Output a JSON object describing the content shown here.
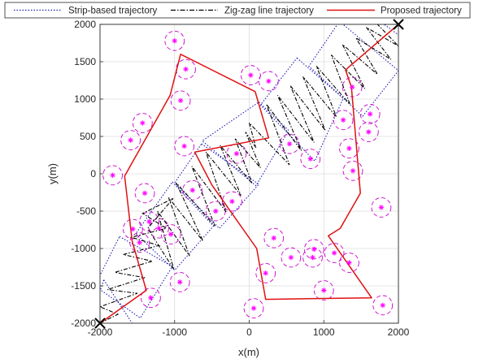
{
  "chart_data": {
    "type": "scatter",
    "xlabel": "x(m)",
    "ylabel": "y(m)",
    "xlim": [
      -2000,
      2000
    ],
    "ylim": [
      -2000,
      2000
    ],
    "xticks": [
      -2000,
      -1000,
      0,
      1000,
      2000
    ],
    "yticks": [
      -2000,
      -1500,
      -1000,
      -500,
      0,
      500,
      1000,
      1500,
      2000
    ],
    "xtick_labels": [
      "-2000",
      "-1000",
      "0",
      "1000",
      "2000"
    ],
    "ytick_labels": [
      "-2000",
      "-1500",
      "-1000",
      "-500",
      "0",
      "500",
      "1000",
      "1500",
      "2000"
    ],
    "grid": true,
    "legend_position": "top",
    "legend": [
      {
        "label": "Strip-based trajectory",
        "color": "#1f1fb4",
        "style": "dotted"
      },
      {
        "label": "Zig-zag line trajectory",
        "color": "#000000",
        "style": "dashdot"
      },
      {
        "label": "Proposed trajectory",
        "color": "#e01010",
        "style": "solid"
      }
    ],
    "colors": {
      "strip": "#1f1fb4",
      "zigzag": "#000000",
      "proposed": "#e01010",
      "ue": "#ff00ff",
      "coverage": "#cc00cc",
      "endpoint": "#000000"
    },
    "endpoints": [
      {
        "x": -2000,
        "y": -2000
      },
      {
        "x": 2000,
        "y": 2000
      }
    ],
    "coverage_radius": 130,
    "ue_points": [
      {
        "x": -1000,
        "y": 1780
      },
      {
        "x": -850,
        "y": 1400
      },
      {
        "x": -920,
        "y": 980
      },
      {
        "x": 20,
        "y": 1320
      },
      {
        "x": 260,
        "y": 1240
      },
      {
        "x": -1430,
        "y": 680
      },
      {
        "x": -1590,
        "y": 450
      },
      {
        "x": -870,
        "y": 370
      },
      {
        "x": -1830,
        "y": -20
      },
      {
        "x": -170,
        "y": 270
      },
      {
        "x": 540,
        "y": 400
      },
      {
        "x": 820,
        "y": 200
      },
      {
        "x": 1380,
        "y": 1160
      },
      {
        "x": 1260,
        "y": 720
      },
      {
        "x": 1620,
        "y": 800
      },
      {
        "x": 1600,
        "y": 560
      },
      {
        "x": 1340,
        "y": 340
      },
      {
        "x": 1390,
        "y": 40
      },
      {
        "x": -1560,
        "y": -740
      },
      {
        "x": -1470,
        "y": -920
      },
      {
        "x": -1340,
        "y": -640
      },
      {
        "x": -1210,
        "y": -730
      },
      {
        "x": -1050,
        "y": -810
      },
      {
        "x": -1400,
        "y": -260
      },
      {
        "x": -760,
        "y": -220
      },
      {
        "x": -450,
        "y": -500
      },
      {
        "x": -230,
        "y": -370
      },
      {
        "x": 1770,
        "y": -450
      },
      {
        "x": 330,
        "y": -860
      },
      {
        "x": 220,
        "y": -1330
      },
      {
        "x": 560,
        "y": -1120
      },
      {
        "x": 870,
        "y": -1010
      },
      {
        "x": 850,
        "y": -1120
      },
      {
        "x": 1140,
        "y": -1060
      },
      {
        "x": 1340,
        "y": -1190
      },
      {
        "x": 1000,
        "y": -1560
      },
      {
        "x": -930,
        "y": -1450
      },
      {
        "x": -1320,
        "y": -1660
      },
      {
        "x": 60,
        "y": -1800
      },
      {
        "x": 1790,
        "y": -1760
      }
    ],
    "proposed_trajectory": [
      {
        "x": -2000,
        "y": -2000
      },
      {
        "x": -1380,
        "y": -1560
      },
      {
        "x": -1570,
        "y": -900
      },
      {
        "x": -1670,
        "y": -30
      },
      {
        "x": -1060,
        "y": 1050
      },
      {
        "x": -920,
        "y": 1600
      },
      {
        "x": 80,
        "y": 1100
      },
      {
        "x": 260,
        "y": 480
      },
      {
        "x": -730,
        "y": 290
      },
      {
        "x": -500,
        "y": -150
      },
      {
        "x": 100,
        "y": -1000
      },
      {
        "x": 220,
        "y": -1680
      },
      {
        "x": 1640,
        "y": -1660
      },
      {
        "x": 1060,
        "y": -830
      },
      {
        "x": 1220,
        "y": -730
      },
      {
        "x": 1490,
        "y": -260
      },
      {
        "x": 1370,
        "y": 1160
      },
      {
        "x": 1290,
        "y": 1390
      },
      {
        "x": 2000,
        "y": 2000
      }
    ],
    "strip_rectangles": [
      [
        {
          "x": -1950,
          "y": -1420
        },
        {
          "x": -1510,
          "y": -2090
        },
        {
          "x": -2040,
          "y": -2100
        },
        {
          "x": -2080,
          "y": -1820
        }
      ],
      [
        {
          "x": -1740,
          "y": -840
        },
        {
          "x": -1030,
          "y": -1240
        },
        {
          "x": -1460,
          "y": -1930
        },
        {
          "x": -2070,
          "y": -1500
        }
      ],
      [
        {
          "x": -1030,
          "y": -110
        },
        {
          "x": -480,
          "y": -700
        },
        {
          "x": -1000,
          "y": -1290
        },
        {
          "x": -1520,
          "y": -800
        }
      ],
      [
        {
          "x": -640,
          "y": 400
        },
        {
          "x": 130,
          "y": -140
        },
        {
          "x": -400,
          "y": -730
        },
        {
          "x": -1000,
          "y": -120
        }
      ],
      [
        {
          "x": 130,
          "y": 960
        },
        {
          "x": 530,
          "y": 580
        },
        {
          "x": 90,
          "y": -160
        },
        {
          "x": -630,
          "y": 440
        }
      ],
      [
        {
          "x": 640,
          "y": 1550
        },
        {
          "x": 1260,
          "y": 1010
        },
        {
          "x": 880,
          "y": 170
        },
        {
          "x": 150,
          "y": 920
        }
      ],
      [
        {
          "x": 1210,
          "y": 2040
        },
        {
          "x": 2000,
          "y": 1380
        },
        {
          "x": 1520,
          "y": 770
        },
        {
          "x": 800,
          "y": 1440
        }
      ],
      [
        {
          "x": 1700,
          "y": 2080
        },
        {
          "x": 2000,
          "y": 2070
        },
        {
          "x": 2000,
          "y": 1860
        }
      ]
    ],
    "zigzag_trajectory": [
      {
        "x": -2000,
        "y": -2000
      },
      {
        "x": -1760,
        "y": -1880
      },
      {
        "x": -2000,
        "y": -1780
      },
      {
        "x": -1500,
        "y": -1600
      },
      {
        "x": -1900,
        "y": -1550
      },
      {
        "x": -1400,
        "y": -1390
      },
      {
        "x": -1800,
        "y": -1320
      },
      {
        "x": -1300,
        "y": -1170
      },
      {
        "x": -1690,
        "y": -1080
      },
      {
        "x": -1210,
        "y": -960
      },
      {
        "x": -1580,
        "y": -850
      },
      {
        "x": -1110,
        "y": -730
      },
      {
        "x": -1430,
        "y": -530
      },
      {
        "x": -1020,
        "y": -330
      },
      {
        "x": -1360,
        "y": -730
      },
      {
        "x": -1010,
        "y": -1280
      },
      {
        "x": -1230,
        "y": -500
      },
      {
        "x": -800,
        "y": -1100
      },
      {
        "x": -1080,
        "y": -320
      },
      {
        "x": -620,
        "y": -900
      },
      {
        "x": -980,
        "y": -120
      },
      {
        "x": -460,
        "y": -700
      },
      {
        "x": -770,
        "y": 100
      },
      {
        "x": -310,
        "y": -510
      },
      {
        "x": -580,
        "y": 290
      },
      {
        "x": -110,
        "y": -290
      },
      {
        "x": -390,
        "y": 380
      },
      {
        "x": 40,
        "y": -130
      },
      {
        "x": -190,
        "y": 470
      },
      {
        "x": 150,
        "y": 80
      },
      {
        "x": -50,
        "y": 560
      },
      {
        "x": 90,
        "y": 350
      },
      {
        "x": 0,
        "y": 680
      },
      {
        "x": 540,
        "y": 120
      },
      {
        "x": 230,
        "y": 930
      },
      {
        "x": 700,
        "y": 310
      },
      {
        "x": 380,
        "y": 1050
      },
      {
        "x": 870,
        "y": 420
      },
      {
        "x": 550,
        "y": 1180
      },
      {
        "x": 1020,
        "y": 580
      },
      {
        "x": 720,
        "y": 1300
      },
      {
        "x": 1170,
        "y": 760
      },
      {
        "x": 900,
        "y": 1440
      },
      {
        "x": 1350,
        "y": 930
      },
      {
        "x": 1100,
        "y": 1590
      },
      {
        "x": 1550,
        "y": 1140
      },
      {
        "x": 1250,
        "y": 1730
      },
      {
        "x": 1720,
        "y": 1330
      },
      {
        "x": 1430,
        "y": 1820
      },
      {
        "x": 1900,
        "y": 1530
      },
      {
        "x": 1570,
        "y": 1960
      },
      {
        "x": 2000,
        "y": 1710
      },
      {
        "x": 1720,
        "y": 2000
      },
      {
        "x": 2000,
        "y": 2000
      }
    ]
  }
}
